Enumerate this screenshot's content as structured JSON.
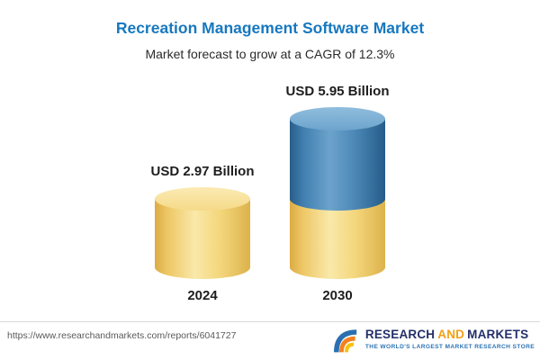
{
  "header": {
    "title": "Recreation Management Software Market",
    "subtitle": "Market forecast to grow at a CAGR of 12.3%"
  },
  "chart_data": {
    "type": "bar",
    "categories": [
      "2024",
      "2030"
    ],
    "values": [
      2.97,
      5.95
    ],
    "value_labels": [
      "USD 2.97 Billion",
      "USD 5.95 Billion"
    ],
    "unit": "USD Billion",
    "title": "Recreation Management Software Market",
    "subtitle": "Market forecast to grow at a CAGR of 12.3%",
    "cagr_percent": 12.3,
    "ylim": [
      0,
      6
    ],
    "grid": false,
    "legend": false,
    "stacked_2030": {
      "base_segment_value": 2.97,
      "growth_segment_value": 2.98
    },
    "colors": {
      "bar_2024": "#f4d77d",
      "bar_2030_base": "#f4d77d",
      "bar_2030_growth": "#4c88b6",
      "title_accent": "#1778bf"
    }
  },
  "footer": {
    "source_url": "https://www.researchandmarkets.com/reports/6041727",
    "logo": {
      "brand_part1": "RESEARCH",
      "brand_and": "AND",
      "brand_part2": "MARKETS",
      "tagline": "THE WORLD'S LARGEST MARKET RESEARCH STORE"
    }
  }
}
